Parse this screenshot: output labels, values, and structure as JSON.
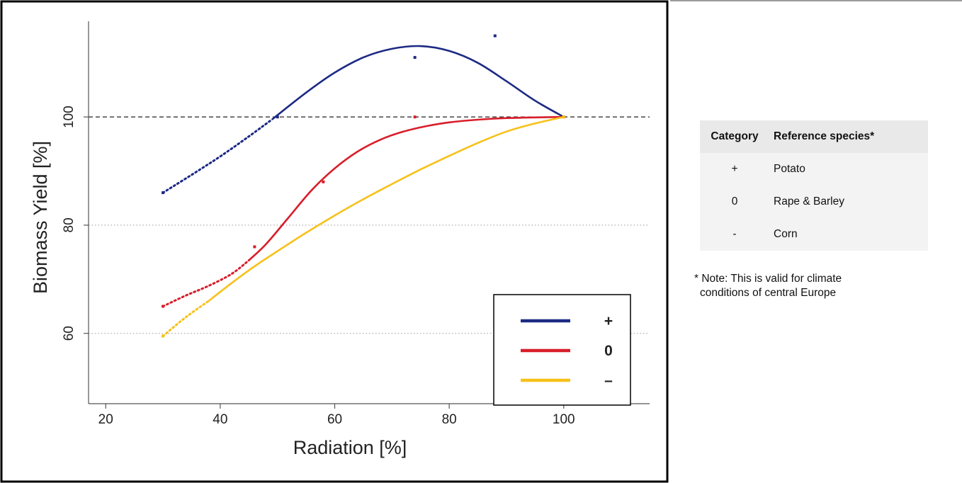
{
  "chart_data": {
    "type": "line",
    "title": "",
    "xlabel": "Radiation [%]",
    "ylabel": "Biomass Yield [%]",
    "xlim": [
      17,
      115
    ],
    "ylim": [
      47,
      119
    ],
    "xticks": [
      20,
      40,
      60,
      80,
      100
    ],
    "yticks": [
      60,
      80,
      100
    ],
    "reference_line": {
      "y": 100,
      "style": "dashed"
    },
    "grid": "horizontal dotted at 60 and 80",
    "legend_position": "bottom-right",
    "series": [
      {
        "name": "+",
        "color": "#1c2a84",
        "points": [
          [
            30,
            86
          ],
          [
            50,
            100
          ],
          [
            74,
            111
          ],
          [
            88,
            115
          ]
        ],
        "curve_dotted": [
          [
            30,
            86
          ],
          [
            35,
            89.3
          ],
          [
            40,
            92.7
          ],
          [
            45,
            96.4
          ],
          [
            49,
            99.5
          ]
        ],
        "curve_solid": [
          [
            49,
            99.5
          ],
          [
            55,
            104.5
          ],
          [
            60,
            108.2
          ],
          [
            65,
            111
          ],
          [
            70,
            112.6
          ],
          [
            75,
            113.1
          ],
          [
            80,
            112.2
          ],
          [
            85,
            110
          ],
          [
            90,
            106.6
          ],
          [
            95,
            103
          ],
          [
            100,
            100
          ]
        ]
      },
      {
        "name": "0",
        "color": "#d81e2a",
        "points": [
          [
            30,
            65
          ],
          [
            46,
            76
          ],
          [
            58,
            88
          ],
          [
            74,
            100
          ],
          [
            100,
            100
          ]
        ],
        "curve_dotted": [
          [
            30,
            65
          ],
          [
            34,
            67
          ],
          [
            38,
            68.8
          ],
          [
            42,
            71
          ],
          [
            45,
            73.5
          ]
        ],
        "curve_solid": [
          [
            45,
            73.5
          ],
          [
            48,
            76.5
          ],
          [
            52,
            81.5
          ],
          [
            56,
            86.5
          ],
          [
            60,
            90.5
          ],
          [
            64,
            93.6
          ],
          [
            68,
            95.8
          ],
          [
            72,
            97.3
          ],
          [
            76,
            98.3
          ],
          [
            80,
            99
          ],
          [
            85,
            99.5
          ],
          [
            90,
            99.8
          ],
          [
            100,
            100
          ]
        ]
      },
      {
        "name": "–",
        "color": "#f7c11a",
        "points": [
          [
            30,
            59.5
          ],
          [
            100,
            100
          ]
        ],
        "curve_dotted": [
          [
            30,
            59.5
          ],
          [
            34,
            63
          ],
          [
            38,
            66
          ]
        ],
        "curve_solid": [
          [
            38,
            66
          ],
          [
            42,
            69.3
          ],
          [
            46,
            72.4
          ],
          [
            50,
            75.2
          ],
          [
            55,
            78.6
          ],
          [
            60,
            81.8
          ],
          [
            65,
            84.8
          ],
          [
            70,
            87.6
          ],
          [
            75,
            90.3
          ],
          [
            80,
            92.8
          ],
          [
            85,
            95.2
          ],
          [
            90,
            97.3
          ],
          [
            95,
            98.8
          ],
          [
            100,
            100
          ]
        ]
      }
    ]
  },
  "legend": [
    {
      "color": "#1c2a84",
      "label": "+"
    },
    {
      "color": "#d81e2a",
      "label": "0"
    },
    {
      "color": "#f7c11a",
      "label": "–"
    }
  ],
  "table": {
    "headers": {
      "category": "Category",
      "species": "Reference species*"
    },
    "rows": [
      {
        "category": "+",
        "species": "Potato"
      },
      {
        "category": "0",
        "species": "Rape & Barley"
      },
      {
        "category": "-",
        "species": "Corn"
      }
    ],
    "note_line1": "* Note: This is valid for climate",
    "note_line2": "conditions of central Europe"
  }
}
